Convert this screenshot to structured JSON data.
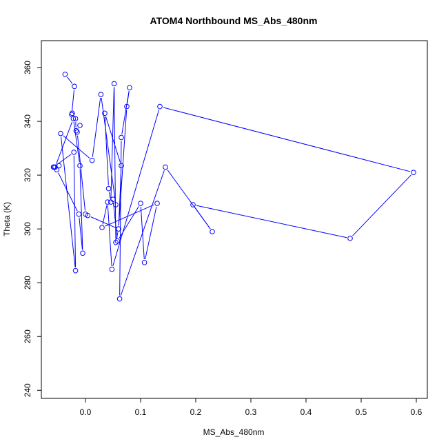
{
  "chart_data": {
    "type": "scatter",
    "title": "ATOM4 Northbound MS_Abs_480nm",
    "xlabel": "MS_Abs_480nm",
    "ylabel": "Theta (K)",
    "xlim": [
      -0.08,
      0.62
    ],
    "ylim": [
      237,
      370
    ],
    "x_ticks": [
      0.0,
      0.1,
      0.2,
      0.3,
      0.4,
      0.5,
      0.6
    ],
    "x_tick_labels": [
      "0.0",
      "0.1",
      "0.2",
      "0.3",
      "0.4",
      "0.5",
      "0.6"
    ],
    "y_ticks": [
      240,
      260,
      280,
      300,
      320,
      340,
      360
    ],
    "y_tick_labels": [
      "240",
      "260",
      "280",
      "300",
      "320",
      "340",
      "360"
    ],
    "grid": false,
    "legend": "none",
    "color": "#0000ff",
    "series": [
      {
        "x": [
          -0.037,
          -0.02,
          -0.025,
          -0.024,
          -0.018,
          -0.017,
          -0.01,
          -0.015,
          0.0,
          0.004,
          0.06,
          0.065,
          0.035,
          0.042,
          0.046,
          0.052,
          0.055,
          0.06,
          0.075,
          0.08,
          0.065,
          0.062,
          0.145,
          0.23,
          0.195,
          0.48,
          0.595,
          0.135,
          0.048,
          0.04,
          0.03,
          0.13,
          0.107,
          0.1,
          0.058,
          0.05,
          0.055,
          0.028,
          0.012,
          -0.045,
          -0.018,
          -0.021,
          -0.058,
          -0.057,
          -0.048,
          -0.052,
          -0.012,
          -0.005,
          -0.01,
          -0.022,
          -0.055
        ],
        "y": [
          357.5,
          353.0,
          342.5,
          343.0,
          341.0,
          336.5,
          338.5,
          336.0,
          305.5,
          305.0,
          300.0,
          323.5,
          343.0,
          315.0,
          310.0,
          354.0,
          295.0,
          300.0,
          345.5,
          352.5,
          334.0,
          274.0,
          323.0,
          299.0,
          309.0,
          296.5,
          321.0,
          345.5,
          285.0,
          310.0,
          300.5,
          309.5,
          287.5,
          309.5,
          295.5,
          311.0,
          309.0,
          350.0,
          325.5,
          335.5,
          284.5,
          328.5,
          323.0,
          323.0,
          323.5,
          322.0,
          305.5,
          291.0,
          323.5,
          341.0,
          323.0
        ]
      }
    ]
  }
}
